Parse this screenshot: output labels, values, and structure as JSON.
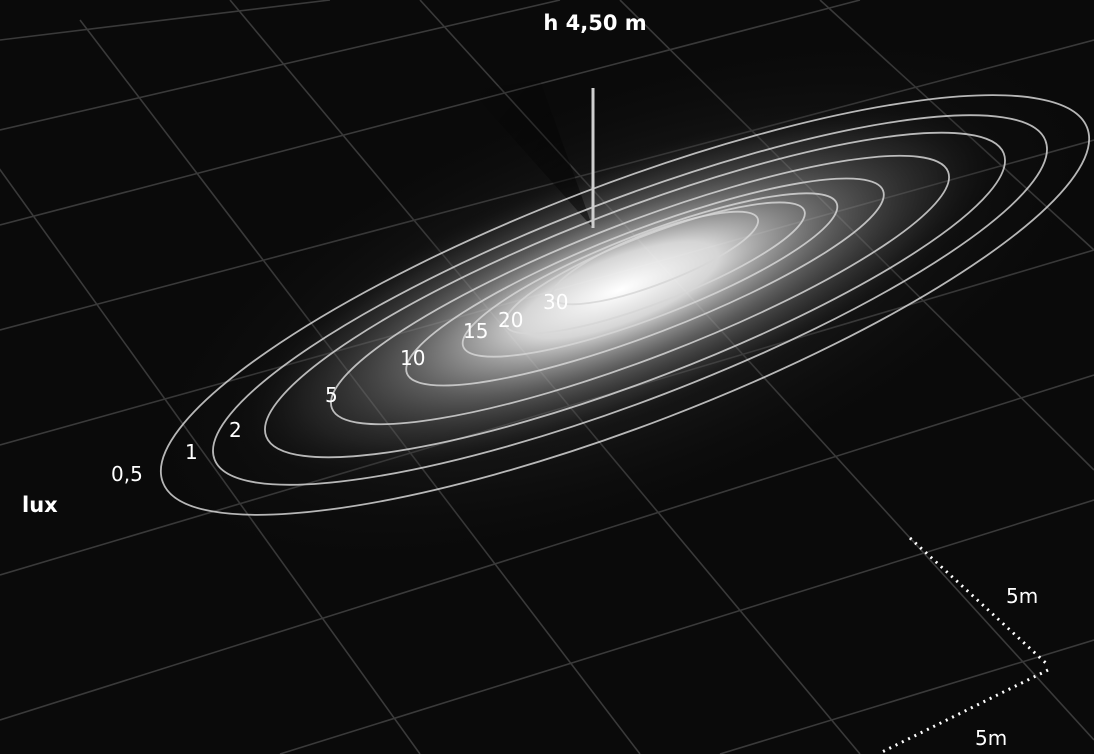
{
  "height_label": "h 4,50 m",
  "unit_label": "lux",
  "contour_labels": [
    "0,5",
    "1",
    "2",
    "5",
    "10",
    "15",
    "20",
    "30"
  ],
  "scale_labels": [
    "5m",
    "5m"
  ]
}
